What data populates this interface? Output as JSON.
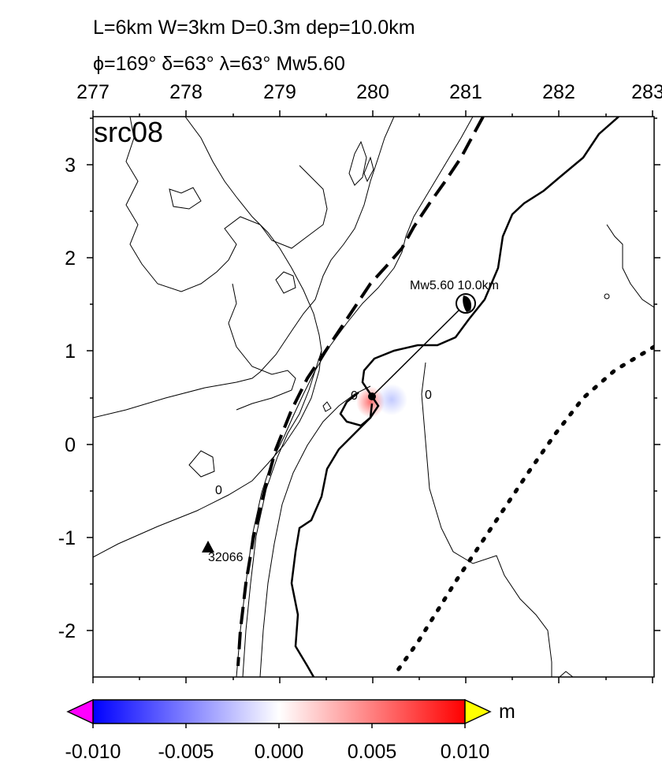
{
  "header": {
    "line1": "L=6km W=3km D=0.3m dep=10.0km",
    "line2": "ϕ=169° δ=63° λ=63° Mw5.60"
  },
  "panel_label": "src08",
  "axes": {
    "x_ticks": [
      "277",
      "278",
      "279",
      "280",
      "281",
      "282",
      "283"
    ],
    "y_ticks": [
      "3",
      "2",
      "1",
      "0",
      "-1",
      "-2"
    ],
    "x_range": [
      277,
      283
    ],
    "y_range": [
      -2.5,
      3.5
    ]
  },
  "source": {
    "label": "Mw5.60  10.0km",
    "epicenter": [
      281.0,
      1.5
    ],
    "fault_center": [
      280.0,
      0.5
    ]
  },
  "station": {
    "label": "32066",
    "position": [
      278.23,
      -1.12
    ]
  },
  "contour_labels": [
    {
      "text": "0",
      "at": [
        279.8,
        0.52
      ]
    },
    {
      "text": "0",
      "at": [
        280.6,
        0.53
      ]
    },
    {
      "text": "0",
      "at": [
        278.35,
        -0.48
      ]
    }
  ],
  "colorbar": {
    "unit": "m",
    "ticks": [
      "-0.010",
      "-0.005",
      "0.000",
      "0.005",
      "0.010"
    ],
    "range": [
      -0.01,
      0.01
    ],
    "colors": {
      "min": "#0000ff",
      "mid": "#ffffff",
      "max": "#ff0000",
      "below": "#ff00ff",
      "above": "#ffff00"
    }
  }
}
